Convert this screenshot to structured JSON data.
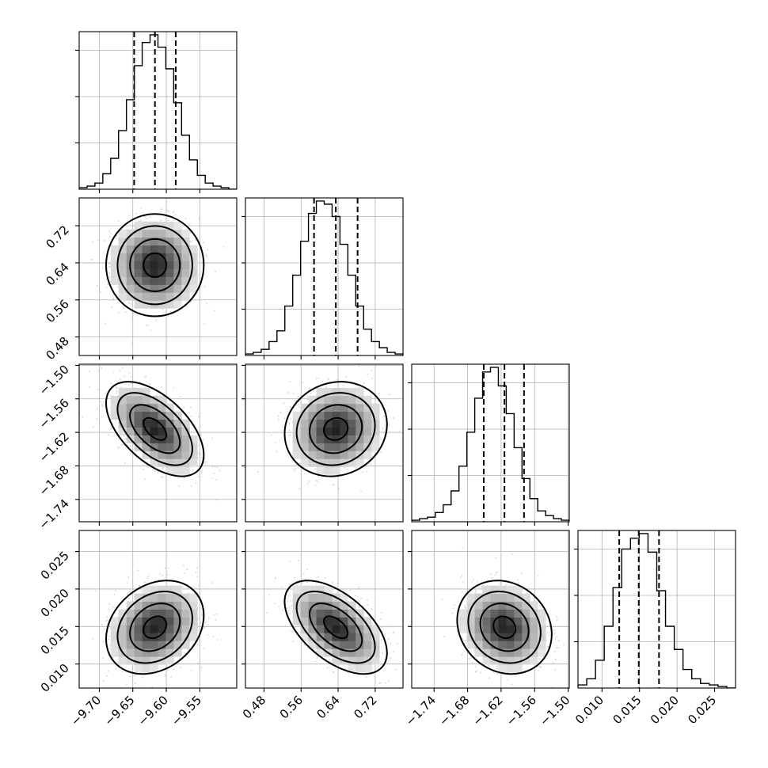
{
  "chart_data": {
    "type": "corner",
    "grid": true,
    "parameters": [
      {
        "index": 0,
        "range": [
          -9.73,
          -9.495
        ],
        "ticks": [
          -9.7,
          -9.65,
          -9.6,
          -9.55
        ],
        "tick_labels": [
          "−9.70",
          "−9.65",
          "−9.60",
          "−9.55"
        ],
        "quantiles": [
          -9.648,
          -9.617,
          -9.586
        ],
        "histogram": [
          1,
          2,
          4,
          10,
          20,
          38,
          58,
          80,
          95,
          100,
          92,
          78,
          56,
          35,
          19,
          9,
          4,
          2,
          1,
          0
        ]
      },
      {
        "index": 1,
        "range": [
          0.44,
          0.78
        ],
        "ticks": [
          0.48,
          0.56,
          0.64,
          0.72
        ],
        "tick_labels": [
          "0.48",
          "0.56",
          "0.64",
          "0.72"
        ],
        "quantiles": [
          0.588,
          0.635,
          0.682
        ],
        "histogram": [
          1,
          2,
          4,
          9,
          16,
          32,
          52,
          74,
          92,
          100,
          98,
          90,
          72,
          52,
          32,
          17,
          9,
          5,
          2,
          1
        ]
      },
      {
        "index": 2,
        "range": [
          -1.78,
          -1.498
        ],
        "ticks": [
          -1.74,
          -1.68,
          -1.62,
          -1.56,
          -1.5
        ],
        "tick_labels": [
          "−1.74",
          "−1.68",
          "−1.62",
          "−1.56",
          "−1.50"
        ],
        "quantiles": [
          -1.651,
          -1.614,
          -1.579
        ],
        "histogram": [
          1,
          2,
          3,
          6,
          11,
          20,
          36,
          58,
          80,
          97,
          100,
          88,
          70,
          48,
          28,
          15,
          7,
          4,
          2,
          1
        ]
      },
      {
        "index": 3,
        "range": [
          0.0068,
          0.0278
        ],
        "ticks": [
          0.01,
          0.015,
          0.02,
          0.025
        ],
        "tick_labels": [
          "0.010",
          "0.015",
          "0.020",
          "0.025"
        ],
        "quantiles": [
          0.0123,
          0.0149,
          0.0176
        ],
        "histogram": [
          2,
          6,
          18,
          40,
          65,
          90,
          97,
          100,
          88,
          63,
          40,
          25,
          12,
          6,
          3,
          2,
          1,
          0
        ]
      }
    ],
    "correlations": [
      [
        1,
        0,
        -0.55,
        0.25
      ],
      [
        0,
        1,
        0.1,
        -0.55
      ],
      [
        -0.55,
        0.1,
        1,
        -0.15
      ],
      [
        0.25,
        -0.55,
        -0.15,
        1
      ]
    ],
    "colors": {
      "ink": "#000000",
      "grid": "#b0b0b0",
      "density_max": "#000000",
      "scatter": "#bdbdbd"
    }
  }
}
